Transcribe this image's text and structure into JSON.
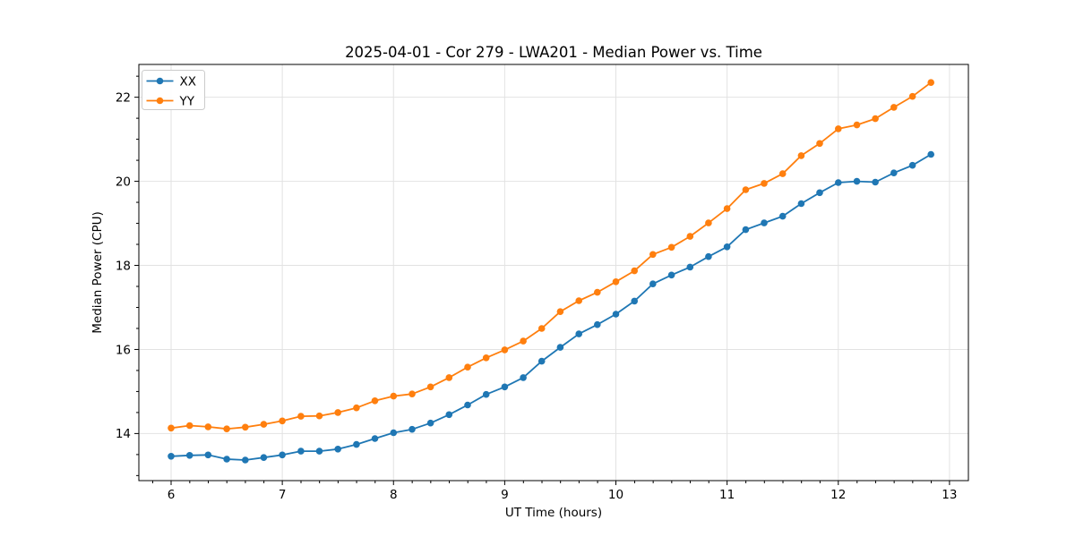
{
  "chart_data": {
    "type": "line",
    "title": "2025-04-01 - Cor 279 - LWA201 - Median Power vs. Time",
    "xlabel": "UT Time (hours)",
    "ylabel": "Median Power (CPU)",
    "xlim": [
      5.71,
      13.17
    ],
    "ylim": [
      12.88,
      22.78
    ],
    "x_ticks": [
      6,
      7,
      8,
      9,
      10,
      11,
      12,
      13
    ],
    "y_ticks": [
      14,
      16,
      18,
      20,
      22
    ],
    "x_minor_step": 0.1667,
    "y_minor_step": 0.5,
    "grid": true,
    "legend_position": "upper left",
    "marker": "circle",
    "x": [
      6.0,
      6.167,
      6.333,
      6.5,
      6.667,
      6.833,
      7.0,
      7.167,
      7.333,
      7.5,
      7.667,
      7.833,
      8.0,
      8.167,
      8.333,
      8.5,
      8.667,
      8.833,
      9.0,
      9.167,
      9.333,
      9.5,
      9.667,
      9.833,
      10.0,
      10.167,
      10.333,
      10.5,
      10.667,
      10.833,
      11.0,
      11.167,
      11.333,
      11.5,
      11.667,
      11.833,
      12.0,
      12.167,
      12.333,
      12.5,
      12.667,
      12.833
    ],
    "series": [
      {
        "name": "XX",
        "color": "#1f77b4",
        "values": [
          13.46,
          13.48,
          13.49,
          13.39,
          13.37,
          13.43,
          13.49,
          13.58,
          13.58,
          13.63,
          13.74,
          13.88,
          14.02,
          14.1,
          14.25,
          14.45,
          14.68,
          14.93,
          15.11,
          15.33,
          15.72,
          16.05,
          16.37,
          16.59,
          16.84,
          17.15,
          17.56,
          17.77,
          17.96,
          18.21,
          18.44,
          18.85,
          19.01,
          19.17,
          19.47,
          19.73,
          19.97,
          20.0,
          19.98,
          20.2,
          20.38,
          20.64
        ]
      },
      {
        "name": "YY",
        "color": "#ff7f0e",
        "values": [
          14.13,
          14.19,
          14.16,
          14.11,
          14.15,
          14.22,
          14.3,
          14.41,
          14.42,
          14.5,
          14.61,
          14.78,
          14.89,
          14.94,
          15.11,
          15.33,
          15.58,
          15.8,
          15.99,
          16.2,
          16.5,
          16.9,
          17.16,
          17.36,
          17.61,
          17.87,
          18.26,
          18.43,
          18.69,
          19.01,
          19.35,
          19.8,
          19.95,
          20.18,
          20.61,
          20.9,
          21.25,
          21.34,
          21.49,
          21.76,
          22.02,
          22.35
        ]
      }
    ]
  }
}
